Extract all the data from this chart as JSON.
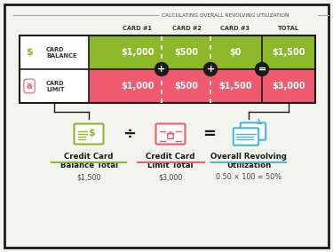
{
  "title": "CALCULATING OVERALL REVOLVING UTILIZATION",
  "bg_color": "#f5f5f0",
  "border_color": "#1a1a1a",
  "green_color": "#8db829",
  "red_color": "#f05a6e",
  "blue_color": "#4ab8d4",
  "black_color": "#1a1a1a",
  "columns": [
    "CARD #1",
    "CARD #2",
    "CARD #3",
    "TOTAL"
  ],
  "balance_values": [
    "$1,000",
    "$500",
    "$0",
    "$1,500"
  ],
  "limit_values": [
    "$1,000",
    "$500",
    "$1,500",
    "$3,000"
  ],
  "row_labels": [
    "CARD\nBALANCE",
    "CARD\nLIMIT"
  ],
  "col_operators": [
    "+",
    "+",
    "="
  ],
  "bottom_labels": [
    "Credit Card\nBalance Total",
    "Credit Card\nLimit Total",
    "Overall Revolving\nUtilization"
  ],
  "bottom_values": [
    "$1,500",
    "$3,000",
    "0.50 × 100 = 50%"
  ],
  "bottom_operators": [
    "÷",
    "="
  ],
  "label_underline_colors": [
    "#8db829",
    "#f05a6e",
    "#4ab8d4"
  ]
}
